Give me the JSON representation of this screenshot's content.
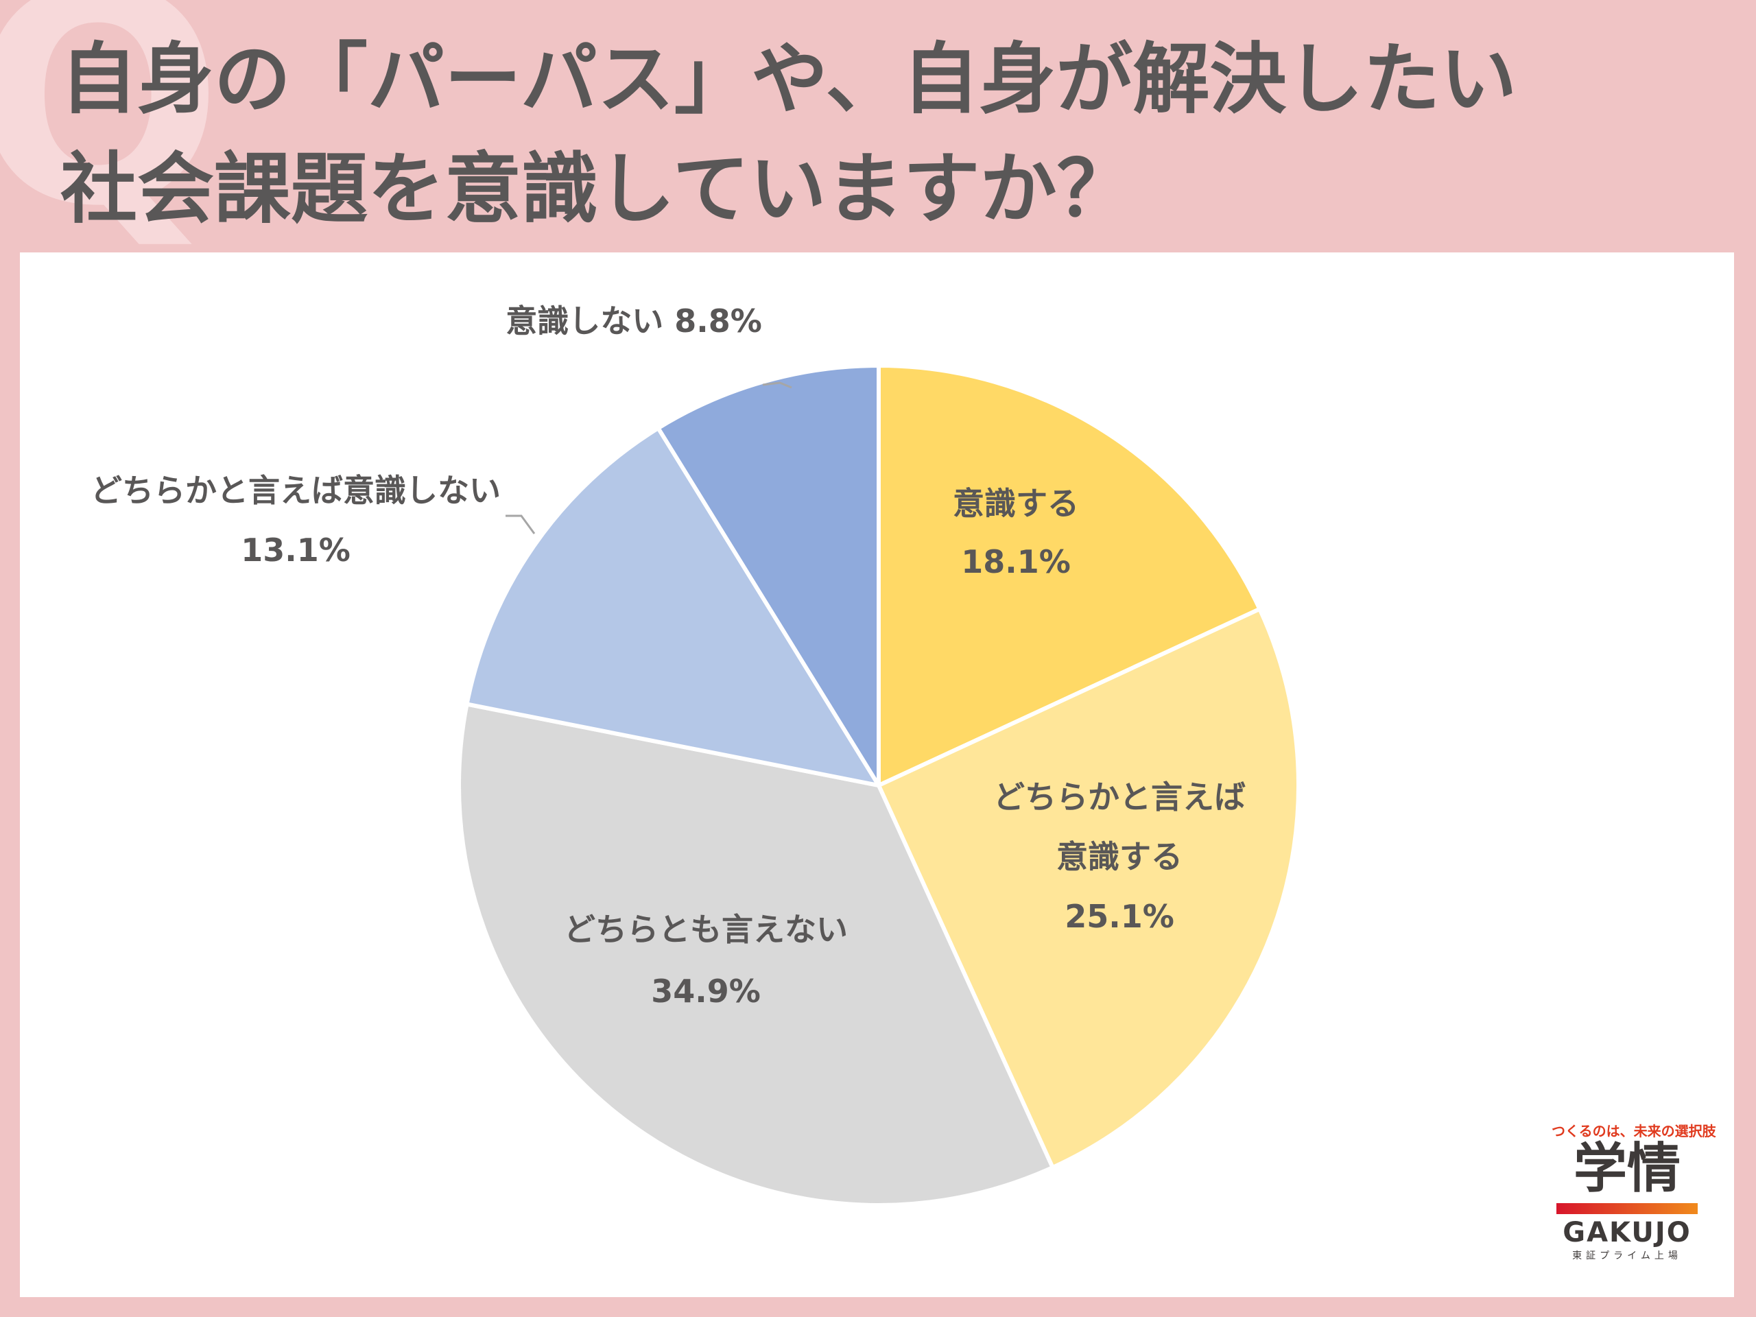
{
  "title": {
    "line1": "自身の「パーパス」や、自身が解決したい",
    "line2": "社会課題を意識していますか？"
  },
  "decor": {
    "q_letter": "Q"
  },
  "chart_data": {
    "type": "pie",
    "title": "自身の「パーパス」や、自身が解決したい社会課題を意識していますか？",
    "start_angle_deg": 0,
    "direction": "clockwise",
    "slices": [
      {
        "label": "意識する",
        "value": 18.1,
        "value_label": "18.1%",
        "color": "#ffd966"
      },
      {
        "label": "どちらかと言えば意識する",
        "value": 25.1,
        "value_label": "25.1%",
        "color": "#ffe699"
      },
      {
        "label": "どちらとも言えない",
        "value": 34.9,
        "value_label": "34.9%",
        "color": "#d9d9d9"
      },
      {
        "label": "どちらかと言えば意識しない",
        "value": 13.1,
        "value_label": "13.1%",
        "color": "#b4c7e7"
      },
      {
        "label": "意識しない",
        "value": 8.8,
        "value_label": "8.8%",
        "color": "#8faadc"
      }
    ],
    "slice_labels": [
      [
        "意識する",
        "18.1%"
      ],
      [
        "どちらかと言えば",
        "意識する",
        "25.1%"
      ],
      [
        "どちらとも言えない",
        "34.9%"
      ],
      [
        "どちらかと言えば意識しない",
        "13.1%"
      ],
      [
        "意識しない 8.8%"
      ]
    ],
    "legend": "none"
  },
  "logo": {
    "tagline": "つくるのは、未来の選択肢",
    "mark": "学情",
    "brand": "GAKUJO",
    "sub": "東証プライム上場"
  }
}
